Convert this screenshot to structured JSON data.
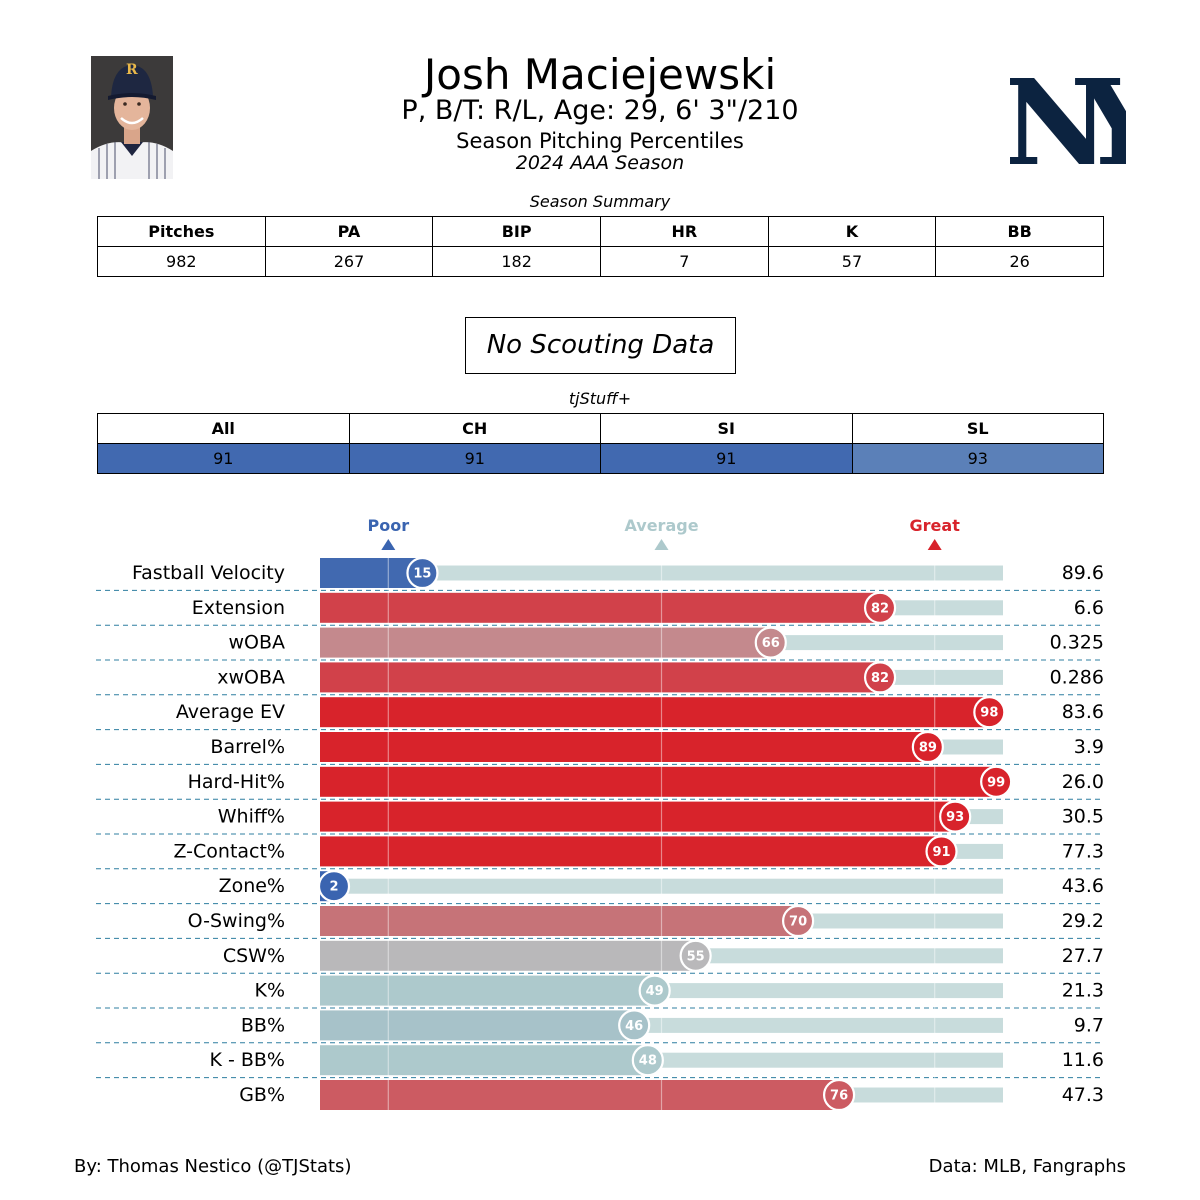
{
  "header": {
    "player_name": "Josh Maciejewski",
    "bio": "P, B/T: R/L, Age: 29, 6' 3\"/210",
    "subtitle": "Season Pitching Percentiles",
    "season": "2024 AAA Season",
    "team_logo_letters": "NY",
    "cap_letter": "R"
  },
  "season_summary": {
    "title": "Season Summary",
    "headers": [
      "Pitches",
      "PA",
      "BIP",
      "HR",
      "K",
      "BB"
    ],
    "values": [
      "982",
      "267",
      "182",
      "7",
      "57",
      "26"
    ]
  },
  "scouting": {
    "text": "No Scouting Data"
  },
  "tjstuff": {
    "title": "tjStuff+",
    "headers": [
      "All",
      "CH",
      "SI",
      "SL"
    ],
    "values": [
      "91",
      "91",
      "91",
      "93"
    ],
    "colors": [
      "#4169b0",
      "#4169b0",
      "#4169b0",
      "#5b80b8"
    ]
  },
  "legend": {
    "poor": "Poor",
    "average": "Average",
    "great": "Great",
    "poor_color": "#3a64b0",
    "average_color": "#adc9cc",
    "great_color": "#d8232b"
  },
  "chart_data": {
    "type": "bar",
    "orientation": "horizontal",
    "xlim": [
      0,
      100
    ],
    "reference_lines": [
      10,
      50,
      90
    ],
    "categories": [
      "Fastball Velocity",
      "Extension",
      "wOBA",
      "xwOBA",
      "Average EV",
      "Barrel%",
      "Hard-Hit%",
      "Whiff%",
      "Z-Contact%",
      "Zone%",
      "O-Swing%",
      "CSW%",
      "K%",
      "BB%",
      "K - BB%",
      "GB%"
    ],
    "percentiles": [
      15,
      82,
      66,
      82,
      98,
      89,
      99,
      93,
      91,
      2,
      70,
      55,
      49,
      46,
      48,
      76
    ],
    "stat_values": [
      "89.6",
      "6.6",
      "0.325",
      "0.286",
      "83.6",
      "3.9",
      "26.0",
      "30.5",
      "77.3",
      "43.6",
      "29.2",
      "27.7",
      "21.3",
      "9.7",
      "11.6",
      "47.3"
    ],
    "bar_colors": [
      "#4169b0",
      "#d1414a",
      "#c4898d",
      "#d1414a",
      "#d8232b",
      "#d8232b",
      "#d8232b",
      "#d8232b",
      "#d8232b",
      "#3a64b0",
      "#c67378",
      "#b9b8ba",
      "#adc9cc",
      "#a7c2c9",
      "#adc9cc",
      "#cc5b62"
    ],
    "track_color": "#c8dcdc"
  },
  "footer": {
    "left": "By: Thomas Nestico (@TJStats)",
    "right": "Data: MLB, Fangraphs"
  }
}
